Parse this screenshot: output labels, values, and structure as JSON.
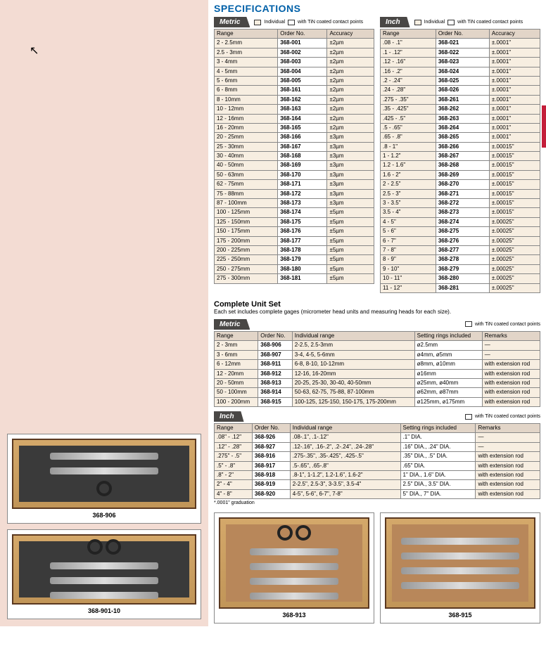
{
  "title": "SPECIFICATIONS",
  "legends": {
    "individual": "Individual",
    "tin": "with TiN coated contact points"
  },
  "units": {
    "metric": "Metric",
    "inch": "Inch"
  },
  "headers": {
    "range": "Range",
    "order": "Order No.",
    "accuracy": "Accuracy",
    "indrange": "Individual range",
    "rings": "Setting rings included",
    "remarks": "Remarks"
  },
  "metric_spec": [
    [
      "2 - 2.5mm",
      "368-001",
      "±2µm"
    ],
    [
      "2.5 - 3mm",
      "368-002",
      "±2µm"
    ],
    [
      "3 - 4mm",
      "368-003",
      "±2µm"
    ],
    [
      "4 - 5mm",
      "368-004",
      "±2µm"
    ],
    [
      "5 - 6mm",
      "368-005",
      "±2µm"
    ],
    [
      "6 - 8mm",
      "368-161",
      "±2µm"
    ],
    [
      "8 - 10mm",
      "368-162",
      "±2µm"
    ],
    [
      "10 - 12mm",
      "368-163",
      "±2µm"
    ],
    [
      "12 - 16mm",
      "368-164",
      "±2µm"
    ],
    [
      "16 - 20mm",
      "368-165",
      "±2µm"
    ],
    [
      "20 - 25mm",
      "368-166",
      "±3µm"
    ],
    [
      "25 - 30mm",
      "368-167",
      "±3µm"
    ],
    [
      "30 - 40mm",
      "368-168",
      "±3µm"
    ],
    [
      "40 - 50mm",
      "368-169",
      "±3µm"
    ],
    [
      "50 - 63mm",
      "368-170",
      "±3µm"
    ],
    [
      "62 - 75mm",
      "368-171",
      "±3µm"
    ],
    [
      "75 - 88mm",
      "368-172",
      "±3µm"
    ],
    [
      "87 - 100mm",
      "368-173",
      "±3µm"
    ],
    [
      "100 - 125mm",
      "368-174",
      "±5µm"
    ],
    [
      "125 - 150mm",
      "368-175",
      "±5µm"
    ],
    [
      "150 - 175mm",
      "368-176",
      "±5µm"
    ],
    [
      "175 - 200mm",
      "368-177",
      "±5µm"
    ],
    [
      "200 - 225mm",
      "368-178",
      "±5µm"
    ],
    [
      "225 - 250mm",
      "368-179",
      "±5µm"
    ],
    [
      "250 - 275mm",
      "368-180",
      "±5µm"
    ],
    [
      "275 - 300mm",
      "368-181",
      "±5µm"
    ]
  ],
  "inch_spec": [
    [
      ".08 - .1\"",
      "368-021",
      "±.0001\""
    ],
    [
      ".1 - .12\"",
      "368-022",
      "±.0001\""
    ],
    [
      ".12 - .16\"",
      "368-023",
      "±.0001\""
    ],
    [
      ".16 - .2\"",
      "368-024",
      "±.0001\""
    ],
    [
      ".2 - .24\"",
      "368-025",
      "±.0001\""
    ],
    [
      ".24 - .28\"",
      "368-026",
      "±.0001\""
    ],
    [
      ".275 - .35\"",
      "368-261",
      "±.0001\""
    ],
    [
      ".35 - .425\"",
      "368-262",
      "±.0001\""
    ],
    [
      ".425 - .5\"",
      "368-263",
      "±.0001\""
    ],
    [
      ".5 - .65\"",
      "368-264",
      "±.0001\""
    ],
    [
      ".65 - .8\"",
      "368-265",
      "±.0001\""
    ],
    [
      ".8 - 1\"",
      "368-266",
      "±.00015\""
    ],
    [
      "1 - 1.2\"",
      "368-267",
      "±.00015\""
    ],
    [
      "1.2 - 1.6\"",
      "368-268",
      "±.00015\""
    ],
    [
      "1.6 - 2\"",
      "368-269",
      "±.00015\""
    ],
    [
      "2 - 2.5\"",
      "368-270",
      "±.00015\""
    ],
    [
      "2.5 - 3\"",
      "368-271",
      "±.00015\""
    ],
    [
      "3 - 3.5\"",
      "368-272",
      "±.00015\""
    ],
    [
      "3.5 - 4\"",
      "368-273",
      "±.00015\""
    ],
    [
      "4 - 5\"",
      "368-274",
      "±.00025\""
    ],
    [
      "5 - 6\"",
      "368-275",
      "±.00025\""
    ],
    [
      "6 - 7\"",
      "368-276",
      "±.00025\""
    ],
    [
      "7 - 8\"",
      "368-277",
      "±.00025\""
    ],
    [
      "8 - 9\"",
      "368-278",
      "±.00025\""
    ],
    [
      "9 - 10\"",
      "368-279",
      "±.00025\""
    ],
    [
      "10 - 11\"",
      "368-280",
      "±.00025\""
    ],
    [
      "11 - 12\"",
      "368-281",
      "±.00025\""
    ]
  ],
  "set_title": "Complete Unit Set",
  "set_sub": "Each set includes complete gages (micrometer head units and measuring heads for each size).",
  "metric_set": [
    [
      "2 - 3mm",
      "368-906",
      "2-2.5, 2.5-3mm",
      "ø2.5mm",
      "—"
    ],
    [
      "3 - 6mm",
      "368-907",
      "3-4, 4-5, 5-6mm",
      "ø4mm, ø5mm",
      "—"
    ],
    [
      "6 - 12mm",
      "368-911",
      "6-8, 8-10, 10-12mm",
      "ø8mm, ø10mm",
      "with extension rod"
    ],
    [
      "12 - 20mm",
      "368-912",
      "12-16, 16-20mm",
      "ø16mm",
      "with extension rod"
    ],
    [
      "20 - 50mm",
      "368-913",
      "20-25, 25-30, 30-40, 40-50mm",
      "ø25mm, ø40mm",
      "with extension rod"
    ],
    [
      "50 - 100mm",
      "368-914",
      "50-63, 62-75, 75-88, 87-100mm",
      "ø62mm, ø87mm",
      "with extension rod"
    ],
    [
      "100 - 200mm",
      "368-915",
      "100-125, 125-150, 150-175, 175-200mm",
      "ø125mm, ø175mm",
      "with extension rod"
    ]
  ],
  "inch_set": [
    [
      ".08\" - .12\"",
      "368-926",
      ".08-.1\", .1-.12\"",
      ".1\" DIA.",
      "—"
    ],
    [
      ".12\" - .28\"",
      "368-927",
      ".12-.16\", .16-.2\", .2-.24\", .24-.28\"",
      ".16\" DIA., .24\" DIA.",
      "—"
    ],
    [
      ".275\" - .5\"",
      "368-916",
      ".275-.35\", .35-.425\", .425-.5\"",
      ".35\" DIA., .5\" DIA.",
      "with extension rod"
    ],
    [
      ".5\" - .8\"",
      "368-917",
      ".5-.65\", .65-.8\"",
      ".65\" DIA.",
      "with extension rod"
    ],
    [
      ".8\" - 2\"",
      "368-918",
      ".8-1\", 1-1.2\", 1.2-1.6\", 1.6-2\"",
      "1\" DIA., 1.6\" DIA.",
      "with extension rod"
    ],
    [
      "2\" - 4\"",
      "368-919",
      "2-2.5\", 2.5-3\", 3-3.5\", 3.5-4\"",
      "2.5\" DIA., 3.5\" DIA.",
      "with extension rod"
    ],
    [
      "4\" - 8\"",
      "368-920",
      "4-5\", 5-6\", 6-7\", 7-8\"",
      "5\" DIA., 7\" DIA.",
      "with extension rod"
    ]
  ],
  "grad_note": "*.0001\" graduation",
  "prod_labels": {
    "p1": "368-906",
    "p2": "368-901-10",
    "p3": "368-913",
    "p4": "368-915"
  }
}
